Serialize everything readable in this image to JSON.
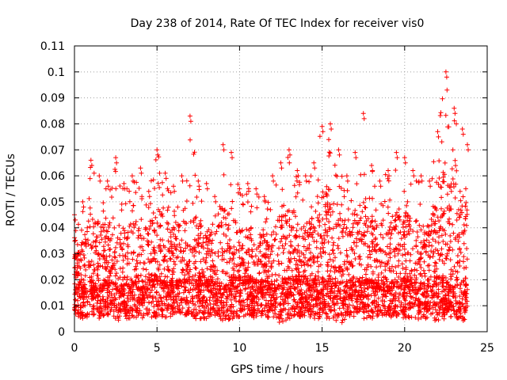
{
  "chart_data": {
    "type": "scatter",
    "title": "Day 238 of 2014, Rate Of TEC Index for receiver vis0",
    "xlabel": "GPS time / hours",
    "ylabel": "ROTI / TECUs",
    "xlim": [
      0,
      25
    ],
    "ylim": [
      0,
      0.11
    ],
    "xticks": [
      "0",
      "5",
      "10",
      "15",
      "20",
      "25"
    ],
    "yticks": [
      "0",
      "0.01",
      "0.02",
      "0.03",
      "0.04",
      "0.05",
      "0.06",
      "0.07",
      "0.08",
      "0.09",
      "0.1",
      "0.11"
    ],
    "grid": true,
    "marker": "+",
    "color": "#ff0000",
    "envelope": {
      "x": [
        0,
        0.5,
        1,
        1.5,
        2,
        2.5,
        3,
        3.5,
        4,
        4.5,
        5,
        5.5,
        6,
        6.5,
        7,
        7.5,
        8,
        8.5,
        9,
        9.5,
        10,
        10.5,
        11,
        11.5,
        12,
        12.5,
        13,
        13.5,
        14,
        14.5,
        15,
        15.5,
        16,
        16.5,
        17,
        17.5,
        18,
        18.5,
        19,
        19.5,
        20,
        20.5,
        21,
        21.5,
        22,
        22.5,
        23,
        23.5,
        23.8
      ],
      "y_upper": [
        0.045,
        0.05,
        0.066,
        0.06,
        0.058,
        0.067,
        0.057,
        0.06,
        0.063,
        0.054,
        0.07,
        0.061,
        0.056,
        0.06,
        0.083,
        0.058,
        0.057,
        0.052,
        0.072,
        0.069,
        0.055,
        0.057,
        0.055,
        0.052,
        0.06,
        0.065,
        0.07,
        0.062,
        0.06,
        0.065,
        0.079,
        0.08,
        0.07,
        0.06,
        0.069,
        0.084,
        0.064,
        0.058,
        0.062,
        0.069,
        0.067,
        0.062,
        0.06,
        0.058,
        0.077,
        0.1,
        0.086,
        0.078,
        0.072
      ],
      "y_lower": [
        0.005,
        0.005,
        0.006,
        0.005,
        0.006,
        0.004,
        0.005,
        0.005,
        0.005,
        0.006,
        0.005,
        0.005,
        0.006,
        0.005,
        0.005,
        0.005,
        0.005,
        0.006,
        0.004,
        0.005,
        0.005,
        0.006,
        0.005,
        0.005,
        0.006,
        0.003,
        0.005,
        0.005,
        0.006,
        0.005,
        0.005,
        0.005,
        0.002,
        0.005,
        0.006,
        0.005,
        0.005,
        0.006,
        0.005,
        0.005,
        0.005,
        0.004,
        0.005,
        0.005,
        0.004,
        0.005,
        0.005,
        0.004,
        0.005
      ],
      "y_typical": [
        0.015,
        0.014,
        0.016,
        0.015,
        0.016,
        0.015,
        0.014,
        0.015,
        0.016,
        0.017,
        0.018,
        0.017,
        0.016,
        0.016,
        0.017,
        0.018,
        0.017,
        0.015,
        0.014,
        0.016,
        0.018,
        0.017,
        0.016,
        0.016,
        0.015,
        0.014,
        0.016,
        0.018,
        0.017,
        0.016,
        0.017,
        0.018,
        0.016,
        0.015,
        0.016,
        0.017,
        0.016,
        0.016,
        0.015,
        0.016,
        0.017,
        0.016,
        0.015,
        0.015,
        0.016,
        0.017,
        0.018,
        0.016,
        0.015
      ]
    }
  }
}
